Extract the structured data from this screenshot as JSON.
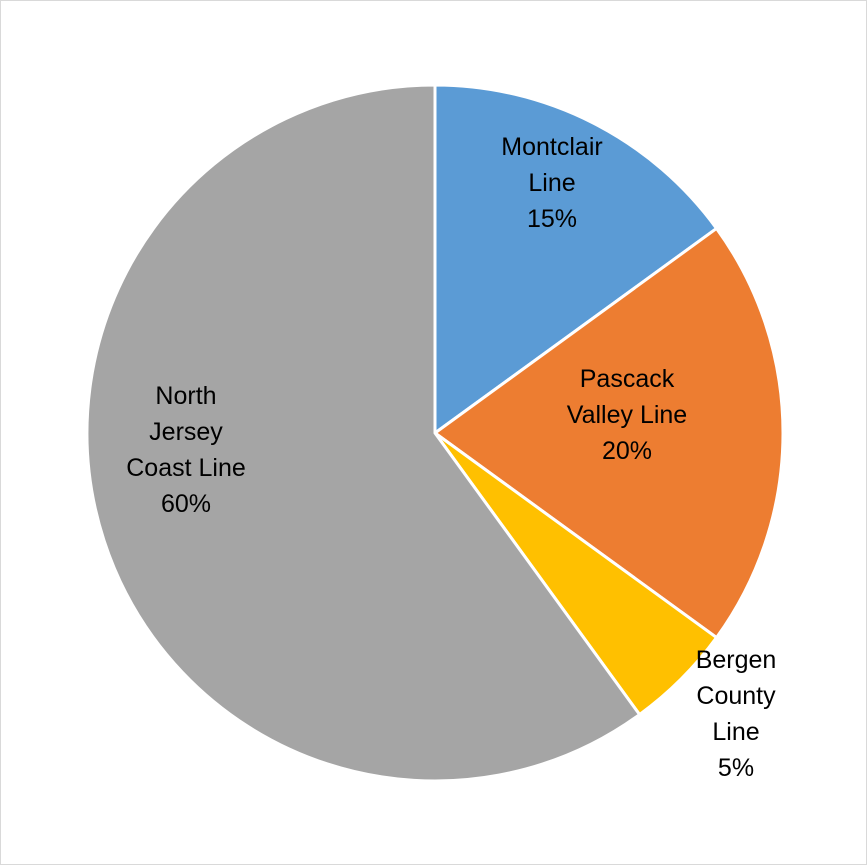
{
  "chart_data": {
    "type": "pie",
    "slices": [
      {
        "name": "Montclair Line",
        "label_lines": [
          "Montclair",
          "Line"
        ],
        "value": 15,
        "percent_label": "15%",
        "color": "#5B9BD5"
      },
      {
        "name": "Pascack Valley Line",
        "label_lines": [
          "Pascack",
          "Valley Line"
        ],
        "value": 20,
        "percent_label": "20%",
        "color": "#ED7D31"
      },
      {
        "name": "Bergen County Line",
        "label_lines": [
          "Bergen",
          "County",
          "Line"
        ],
        "value": 5,
        "percent_label": "5%",
        "color": "#FFC000"
      },
      {
        "name": "North Jersey Coast Line",
        "label_lines": [
          "North",
          "Jersey",
          "Coast Line"
        ],
        "value": 60,
        "percent_label": "60%",
        "color": "#A5A5A5"
      }
    ],
    "start": "12 o'clock",
    "direction": "clockwise",
    "slice_border_color": "#FFFFFF",
    "legend": "none"
  }
}
